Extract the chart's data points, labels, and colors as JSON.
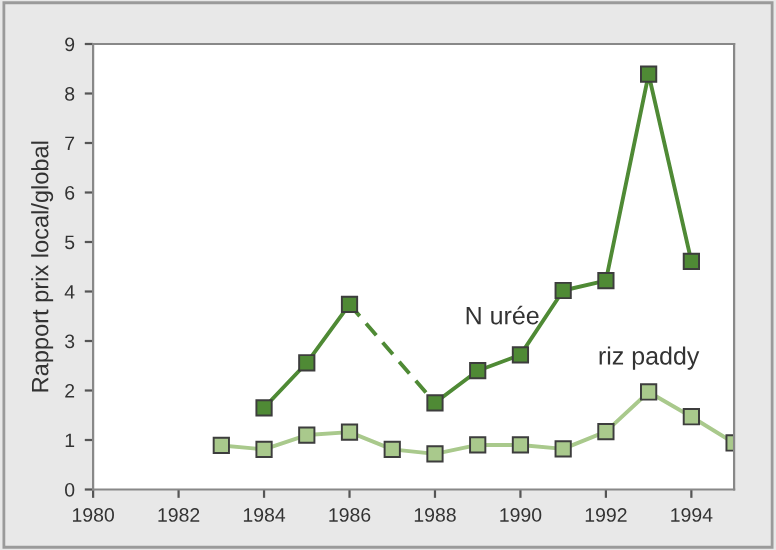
{
  "chart_data": {
    "type": "line",
    "ylabel": "Rapport prix local/global",
    "xlim": [
      1980,
      1995
    ],
    "xticks": [
      1980,
      1982,
      1984,
      1986,
      1988,
      1990,
      1992,
      1994
    ],
    "ylim": [
      0,
      9
    ],
    "yticks": [
      0,
      1,
      2,
      3,
      4,
      5,
      6,
      7,
      8,
      9
    ],
    "grid": false,
    "legend": false,
    "marker": "square",
    "series": [
      {
        "name": "N urée",
        "color": "#4f8a35",
        "x": [
          1984,
          1985,
          1986,
          1987,
          1988,
          1989,
          1990,
          1991,
          1992,
          1993,
          1994
        ],
        "values": [
          1.65,
          2.56,
          3.74,
          null,
          1.75,
          2.4,
          2.72,
          4.02,
          4.22,
          8.39,
          4.61
        ]
      },
      {
        "name": "riz paddy",
        "color": "#a9c98c",
        "x": [
          1983,
          1984,
          1985,
          1986,
          1987,
          1988,
          1989,
          1990,
          1991,
          1992,
          1993,
          1994,
          1995
        ],
        "values": [
          0.89,
          0.81,
          1.1,
          1.16,
          0.81,
          0.72,
          0.9,
          0.9,
          0.82,
          1.17,
          1.97,
          1.47,
          0.94
        ]
      }
    ]
  }
}
